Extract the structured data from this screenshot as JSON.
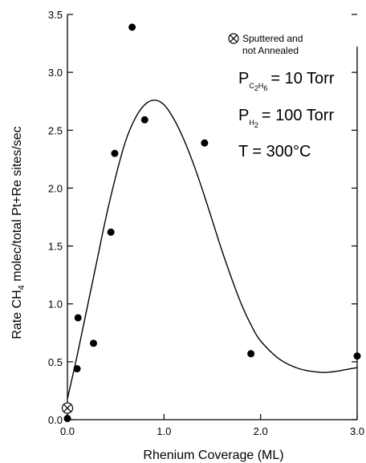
{
  "chart_data": {
    "type": "scatter",
    "title": "",
    "xlabel": "Rhenium Coverage (ML)",
    "ylabel": "Rate CH4 molec/total Pt+Re sites/sec",
    "ylabel_parts": [
      "Rate CH",
      "4",
      " molec/total Pt+Re sites/sec"
    ],
    "xlim": [
      0,
      3.0
    ],
    "ylim": [
      0,
      3.5
    ],
    "x_ticks": [
      "0.0",
      "1.0",
      "2.0",
      "3.0"
    ],
    "x_tick_values": [
      0,
      1,
      2,
      3
    ],
    "y_ticks": [
      "0.0",
      "0.5",
      "1.0",
      "1.5",
      "2.0",
      "2.5",
      "3.0",
      "3.5"
    ],
    "y_tick_values": [
      0,
      0.5,
      1.0,
      1.5,
      2.0,
      2.5,
      3.0,
      3.5
    ],
    "grid": false,
    "series": [
      {
        "marker": "filled-circle",
        "x": [
          0.0,
          0.1,
          0.11,
          0.27,
          0.45,
          0.49,
          0.67,
          0.8,
          1.42,
          1.9,
          3.0
        ],
        "y": [
          0.01,
          0.44,
          0.88,
          0.66,
          1.62,
          2.3,
          3.39,
          2.59,
          2.39,
          0.57,
          0.55
        ]
      },
      {
        "name": "Sputtered and not Annealed",
        "marker": "crossed-circle",
        "x": [
          0.0
        ],
        "y": [
          0.1
        ]
      },
      {
        "kind": "fit-curve",
        "x": [
          0.0,
          0.1,
          0.2,
          0.3,
          0.4,
          0.5,
          0.6,
          0.7,
          0.8,
          0.9,
          1.0,
          1.1,
          1.2,
          1.3,
          1.4,
          1.5,
          1.6,
          1.7,
          1.8,
          1.9,
          2.0,
          2.2,
          2.4,
          2.6,
          2.7,
          2.8,
          3.0
        ],
        "y": [
          0.18,
          0.55,
          0.95,
          1.35,
          1.75,
          2.1,
          2.4,
          2.6,
          2.72,
          2.76,
          2.72,
          2.6,
          2.43,
          2.22,
          1.98,
          1.72,
          1.46,
          1.22,
          1.0,
          0.82,
          0.68,
          0.52,
          0.44,
          0.41,
          0.41,
          0.42,
          0.45
        ]
      }
    ],
    "legend": {
      "label_line1": "Sputtered and",
      "label_line2": "not Annealed",
      "position": "top-right"
    },
    "conditions": {
      "p1_prefix": "P",
      "p1_sub_a": "C",
      "p1_sub_b": "2",
      "p1_sub_c": "H",
      "p1_sub_d": "6",
      "p1_value": "= 10 Torr",
      "p2_prefix": "P",
      "p2_sub_a": "H",
      "p2_sub_b": "2",
      "p2_value": "= 100 Torr",
      "t_label": "T = 300°C"
    }
  }
}
